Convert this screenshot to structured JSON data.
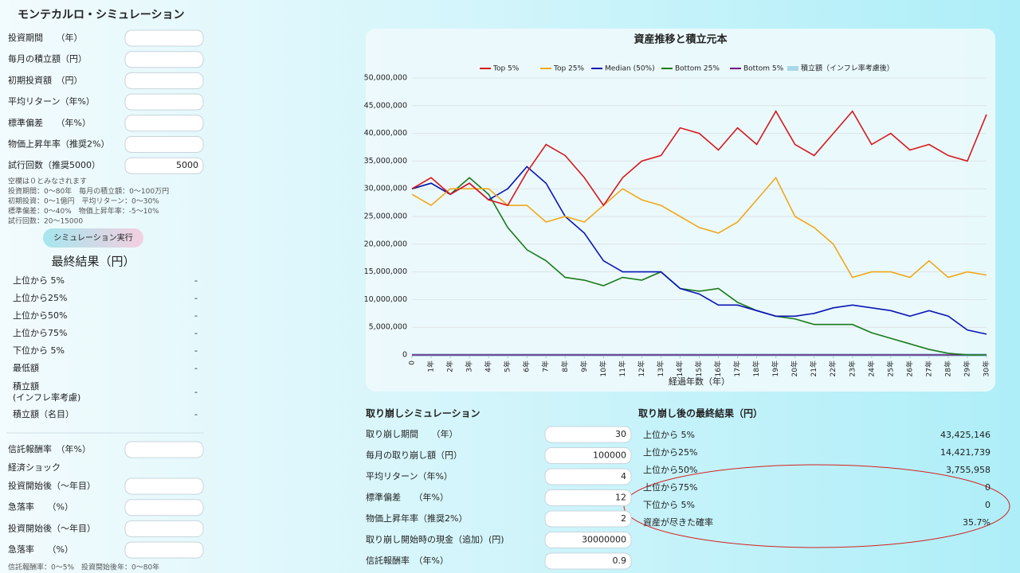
{
  "sim": {
    "title": "モンテカルロ・シミュレーション",
    "fields": [
      {
        "label": "投資期間　　（年）"
      },
      {
        "label": "毎月の積立額（円）"
      },
      {
        "label": "初期投資額　（円）"
      },
      {
        "label": "平均リターン（年%）"
      },
      {
        "label": "標準偏差　　（年%）"
      },
      {
        "label": "物価上昇年率（推奨2%）"
      },
      {
        "label": "試行回数（推奨5000）",
        "value": "5000"
      }
    ],
    "notes": [
      "空欄は０とみなされます",
      "投資期間：0～80年　毎月の積立額：0～100万円",
      "初期投資：0～1億円　平均リターン：0～30%",
      "標準偏差：0～40%　物価上昇年率：-5～10%",
      "試行回数：20～15000"
    ],
    "button": "シミュレーション実行"
  },
  "result": {
    "title": "最終結果（円）",
    "rows": [
      {
        "label": "上位から 5%",
        "value": "-"
      },
      {
        "label": "上位から25%",
        "value": "-"
      },
      {
        "label": "上位から50%",
        "value": "-"
      },
      {
        "label": "上位から75%",
        "value": "-"
      },
      {
        "label": "下位から 5%",
        "value": "-"
      },
      {
        "label": "最低額",
        "value": "-"
      },
      {
        "label": "積立額",
        "sub": "(インフレ率考慮)",
        "value": "-"
      },
      {
        "label": "積立額（名目）",
        "value": "-"
      }
    ]
  },
  "costs": {
    "fields": [
      {
        "label": "信託報酬率　（年%）"
      }
    ],
    "shock_title": "経済ショック",
    "shock_fields": [
      {
        "label": "投資開始後（～年目）"
      },
      {
        "label": "急落率　　（%）"
      },
      {
        "label": "投資開始後（～年目）"
      },
      {
        "label": "急落率　　（%）"
      }
    ],
    "note": "信託報酬率：0～5%　投資開始後年：0～80年"
  },
  "chart_data": {
    "type": "line",
    "title": "資産推移と積立元本",
    "x_label": "経過年数（年）",
    "x": [
      0,
      1,
      2,
      3,
      4,
      5,
      6,
      7,
      8,
      9,
      10,
      11,
      12,
      13,
      14,
      15,
      16,
      17,
      18,
      19,
      20,
      21,
      22,
      23,
      24,
      25,
      26,
      27,
      28,
      29,
      30
    ],
    "xlim": [
      0,
      30
    ],
    "xticks": [
      0,
      {
        "value": 1,
        "label": "1年"
      },
      {
        "value": 2,
        "label": "2年"
      },
      {
        "value": 3,
        "label": "3年"
      },
      {
        "value": 4,
        "label": "4年"
      },
      {
        "value": 5,
        "label": "5年"
      },
      {
        "value": 6,
        "label": "6年"
      },
      {
        "value": 7,
        "label": "7年"
      },
      {
        "value": 8,
        "label": "8年"
      },
      {
        "value": 9,
        "label": "9年"
      },
      {
        "value": 10,
        "label": "10年"
      },
      {
        "value": 11,
        "label": "11年"
      },
      {
        "value": 12,
        "label": "12年"
      },
      {
        "value": 13,
        "label": "13年"
      },
      {
        "value": 14,
        "label": "14年"
      },
      {
        "value": 15,
        "label": "15年"
      },
      {
        "value": 16,
        "label": "16年"
      },
      {
        "value": 17,
        "label": "17年"
      },
      {
        "value": 18,
        "label": "18年"
      },
      {
        "value": 19,
        "label": "19年"
      },
      {
        "value": 20,
        "label": "20年"
      },
      {
        "value": 21,
        "label": "21年"
      },
      {
        "value": 22,
        "label": "22年"
      },
      {
        "value": 23,
        "label": "23年"
      },
      {
        "value": 24,
        "label": "24年"
      },
      {
        "value": 25,
        "label": "25年"
      },
      {
        "value": 26,
        "label": "26年"
      },
      {
        "value": 27,
        "label": "27年"
      },
      {
        "value": 28,
        "label": "28年"
      },
      {
        "value": 29,
        "label": "29年"
      },
      {
        "value": 30,
        "label": "30年"
      }
    ],
    "ylim": [
      0,
      50000000
    ],
    "yticks": [
      0,
      {
        "value": 5000000,
        "label": "5,000,000"
      },
      {
        "value": 10000000,
        "label": "10,000,000"
      },
      {
        "value": 15000000,
        "label": "15,000,000"
      },
      {
        "value": 20000000,
        "label": "20,000,000"
      },
      {
        "value": 25000000,
        "label": "25,000,000"
      },
      {
        "value": 30000000,
        "label": "30,000,000"
      },
      {
        "value": 35000000,
        "label": "35,000,000"
      },
      {
        "value": 40000000,
        "label": "40,000,000"
      },
      {
        "value": 45000000,
        "label": "45,000,000"
      },
      {
        "value": 50000000,
        "label": "50,000,000"
      }
    ],
    "grid": true,
    "legend": "top",
    "series": [
      {
        "name": "Top 5%",
        "color": "#d7191c",
        "values": [
          30000000,
          32000000,
          29000000,
          31000000,
          28000000,
          27000000,
          33000000,
          38000000,
          36000000,
          32000000,
          27000000,
          32000000,
          35000000,
          36000000,
          41000000,
          40000000,
          37000000,
          41000000,
          38000000,
          44000000,
          38000000,
          36000000,
          40000000,
          44000000,
          38000000,
          40000000,
          37000000,
          38000000,
          36000000,
          35000000,
          43425146
        ]
      },
      {
        "name": "Top 25%",
        "color": "#f0a818",
        "values": [
          29000000,
          27000000,
          30000000,
          30000000,
          30000000,
          27000000,
          27000000,
          24000000,
          25000000,
          24000000,
          27000000,
          30000000,
          28000000,
          27000000,
          25000000,
          23000000,
          22000000,
          24000000,
          28000000,
          32000000,
          25000000,
          23000000,
          20000000,
          14000000,
          15000000,
          15000000,
          14000000,
          17000000,
          14000000,
          15000000,
          14421739
        ]
      },
      {
        "name": "Median (50%)",
        "color": "#0a14b4",
        "values": [
          30000000,
          31000000,
          29000000,
          31000000,
          28000000,
          30000000,
          34000000,
          31000000,
          25000000,
          22000000,
          17000000,
          15000000,
          15000000,
          15000000,
          12000000,
          11000000,
          9000000,
          9000000,
          8000000,
          7000000,
          7000000,
          7500000,
          8500000,
          9000000,
          8500000,
          8000000,
          7000000,
          8000000,
          7000000,
          4500000,
          3755958
        ]
      },
      {
        "name": "Bottom 25%",
        "color": "#1a7a1a",
        "values": [
          30000000,
          31000000,
          29000000,
          32000000,
          29000000,
          23000000,
          19000000,
          17000000,
          14000000,
          13500000,
          12500000,
          14000000,
          13500000,
          15000000,
          12000000,
          11500000,
          12000000,
          9500000,
          8000000,
          7000000,
          6500000,
          5500000,
          5500000,
          5500000,
          4000000,
          3000000,
          2000000,
          1000000,
          300000,
          0,
          0
        ]
      },
      {
        "name": "Bottom 5%",
        "color": "#6a1a7a",
        "values": [
          0,
          0,
          0,
          0,
          0,
          0,
          0,
          0,
          0,
          0,
          0,
          0,
          0,
          0,
          0,
          0,
          0,
          0,
          0,
          0,
          0,
          0,
          0,
          0,
          0,
          0,
          0,
          0,
          0,
          0,
          0
        ]
      },
      {
        "name": "積立額（インフレ率考慮後）",
        "color": "#a8d8e8",
        "width": 4,
        "values": [
          0,
          0,
          0,
          0,
          0,
          0,
          0,
          0,
          0,
          0,
          0,
          0,
          0,
          0,
          0,
          0,
          0,
          0,
          0,
          0,
          0,
          0,
          0,
          0,
          0,
          0,
          0,
          0,
          0,
          0,
          0
        ]
      }
    ]
  },
  "withdraw": {
    "title": "取り崩しシミュレーション",
    "fields": [
      {
        "label": "取り崩し期間　　（年）",
        "value": "30"
      },
      {
        "label": "毎月の取り崩し額（円）",
        "value": "100000"
      },
      {
        "label": "平均リターン（年%）",
        "value": "4"
      },
      {
        "label": "標準偏差　　（年%）",
        "value": "12"
      },
      {
        "label": "物価上昇年率（推奨2%）",
        "value": "2"
      },
      {
        "label": "取り崩し開始時の現金（追加）(円)",
        "value": "30000000"
      },
      {
        "label": "信託報酬率　（年%）",
        "value": "0.9"
      }
    ]
  },
  "withdraw_result": {
    "title": "取り崩し後の最終結果（円）",
    "rows": [
      {
        "label": "上位から 5%",
        "value": "43,425,146"
      },
      {
        "label": "上位から25%",
        "value": "14,421,739"
      },
      {
        "label": "上位から50%",
        "value": "3,755,958"
      },
      {
        "label": "上位から75%",
        "value": "0"
      },
      {
        "label": "下位から 5%",
        "value": "0"
      },
      {
        "label": "資産が尽きた確率",
        "value": "35.7%"
      }
    ]
  }
}
